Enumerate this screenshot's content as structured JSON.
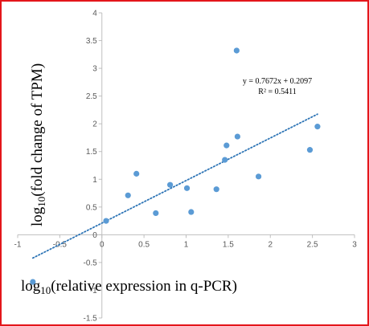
{
  "chart_data": {
    "type": "scatter",
    "title": "",
    "xlabel": {
      "prefix": "log",
      "sub": "10",
      "suffix": "(relative expression in q-PCR)"
    },
    "ylabel": {
      "prefix": "log",
      "sub": "10",
      "suffix": "(fold change of TPM)"
    },
    "xlim": [
      -1,
      3
    ],
    "ylim": [
      -1.5,
      4
    ],
    "xticks": [
      "-1",
      "-0.5",
      "0",
      "0.5",
      "1",
      "1.5",
      "2",
      "2.5",
      "3"
    ],
    "yticks": [
      "-1.5",
      "-1",
      "-0.5",
      "0",
      "0.5",
      "1",
      "1.5",
      "2",
      "2.5",
      "3",
      "3.5",
      "4"
    ],
    "grid": false,
    "legend": "none",
    "series": [
      {
        "color": "#5b9bd5",
        "points": [
          {
            "x": -0.82,
            "y": -0.85
          },
          {
            "x": 0.05,
            "y": 0.25
          },
          {
            "x": 0.31,
            "y": 0.71
          },
          {
            "x": 0.41,
            "y": 1.1
          },
          {
            "x": 0.64,
            "y": 0.39
          },
          {
            "x": 0.81,
            "y": 0.9
          },
          {
            "x": 1.01,
            "y": 0.84
          },
          {
            "x": 1.06,
            "y": 0.41
          },
          {
            "x": 1.36,
            "y": 0.82
          },
          {
            "x": 1.46,
            "y": 1.35
          },
          {
            "x": 1.48,
            "y": 1.61
          },
          {
            "x": 1.6,
            "y": 3.32
          },
          {
            "x": 1.61,
            "y": 1.77
          },
          {
            "x": 1.86,
            "y": 1.05
          },
          {
            "x": 2.47,
            "y": 1.53
          },
          {
            "x": 2.56,
            "y": 1.95
          }
        ]
      }
    ],
    "trendline": {
      "slope": 0.7672,
      "intercept": 0.2097,
      "equation": "y = 0.7672x + 0.2097",
      "r_squared": "R² = 0.5411",
      "style": "dotted",
      "color": "#2e75b6"
    }
  }
}
